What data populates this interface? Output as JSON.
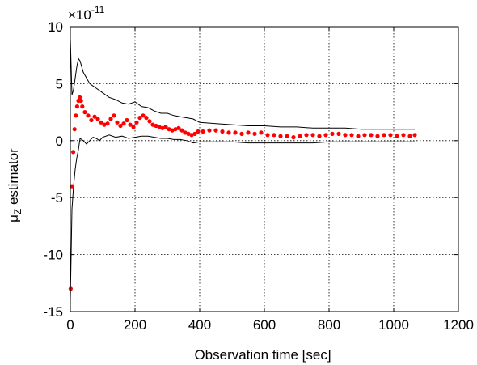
{
  "chart_data": {
    "type": "scatter",
    "xlabel": "Observation time [sec]",
    "ylabel": "μZ estimator",
    "ylabel_main": "μ",
    "ylabel_sub": "Z",
    "ylabel_rest": " estimator",
    "y_multiplier": "×10",
    "y_multiplier_exp": "-11",
    "xlim": [
      0,
      1200
    ],
    "ylim": [
      -15,
      10
    ],
    "x_ticks": [
      "0",
      "200",
      "400",
      "600",
      "800",
      "1000",
      "1200"
    ],
    "y_ticks": [
      "-15",
      "-10",
      "-5",
      "0",
      "5",
      "10"
    ],
    "grid": true,
    "series": [
      {
        "role": "estimate",
        "color": "#ff0000",
        "style": "markers",
        "x": [
          1,
          5,
          9,
          13,
          17,
          21,
          25,
          29,
          33,
          37,
          45,
          55,
          65,
          75,
          85,
          95,
          105,
          115,
          125,
          135,
          145,
          155,
          165,
          175,
          185,
          195,
          205,
          215,
          225,
          235,
          245,
          255,
          265,
          275,
          285,
          295,
          305,
          315,
          325,
          335,
          345,
          355,
          365,
          375,
          385,
          395,
          410,
          430,
          450,
          470,
          490,
          510,
          530,
          550,
          570,
          590,
          610,
          630,
          650,
          670,
          690,
          710,
          730,
          750,
          770,
          790,
          810,
          830,
          850,
          870,
          890,
          910,
          930,
          950,
          970,
          990,
          1010,
          1030,
          1050,
          1065
        ],
        "y": [
          -13,
          -4,
          -1,
          1,
          2.2,
          3,
          3.5,
          3.8,
          3.5,
          3.0,
          2.5,
          2.2,
          1.8,
          2.1,
          1.9,
          1.6,
          1.4,
          1.5,
          1.9,
          2.2,
          1.6,
          1.3,
          1.5,
          1.8,
          1.4,
          1.2,
          1.6,
          2.0,
          2.2,
          2.0,
          1.7,
          1.4,
          1.3,
          1.2,
          1.1,
          1.2,
          1.0,
          0.9,
          1.0,
          1.1,
          0.9,
          0.7,
          0.6,
          0.5,
          0.6,
          0.8,
          0.8,
          0.9,
          0.9,
          0.8,
          0.7,
          0.7,
          0.6,
          0.7,
          0.6,
          0.7,
          0.5,
          0.5,
          0.4,
          0.4,
          0.3,
          0.4,
          0.5,
          0.5,
          0.4,
          0.5,
          0.6,
          0.6,
          0.5,
          0.5,
          0.4,
          0.5,
          0.5,
          0.4,
          0.5,
          0.5,
          0.4,
          0.5,
          0.4,
          0.5
        ]
      },
      {
        "role": "upper-bound",
        "color": "#000000",
        "style": "line",
        "x": [
          0,
          5,
          10,
          15,
          20,
          25,
          30,
          40,
          50,
          60,
          70,
          80,
          90,
          100,
          120,
          140,
          160,
          180,
          200,
          220,
          240,
          260,
          280,
          300,
          320,
          340,
          360,
          380,
          400,
          450,
          500,
          550,
          600,
          650,
          700,
          750,
          800,
          850,
          900,
          950,
          1000,
          1050,
          1065
        ],
        "y": [
          9,
          4,
          4.5,
          5.5,
          6.5,
          7.2,
          7.0,
          6.0,
          5.5,
          5.0,
          4.8,
          4.6,
          4.4,
          4.2,
          3.8,
          3.6,
          3.3,
          3.2,
          3.4,
          3.0,
          2.9,
          2.6,
          2.4,
          2.4,
          2.2,
          2.1,
          2.0,
          1.9,
          1.6,
          1.5,
          1.4,
          1.3,
          1.3,
          1.2,
          1.2,
          1.1,
          1.1,
          1.1,
          1.0,
          1.0,
          1.0,
          1.0,
          1.0
        ]
      },
      {
        "role": "lower-bound",
        "color": "#000000",
        "style": "line",
        "x": [
          0,
          5,
          10,
          15,
          20,
          25,
          30,
          40,
          50,
          60,
          70,
          80,
          90,
          100,
          120,
          140,
          160,
          180,
          200,
          220,
          240,
          260,
          280,
          300,
          320,
          340,
          360,
          380,
          400,
          450,
          500,
          550,
          600,
          650,
          700,
          750,
          800,
          850,
          900,
          950,
          1000,
          1050,
          1065
        ],
        "y": [
          -14,
          -6,
          -4,
          -2.5,
          -1.5,
          -0.8,
          0.2,
          0.0,
          -0.3,
          0.0,
          0.3,
          0.2,
          0.0,
          0.3,
          0.5,
          0.3,
          0.4,
          0.2,
          0.3,
          0.4,
          0.4,
          0.3,
          0.2,
          0.2,
          0.1,
          0.1,
          0.0,
          -0.2,
          -0.1,
          -0.1,
          -0.1,
          -0.2,
          -0.2,
          -0.2,
          -0.2,
          -0.2,
          -0.1,
          -0.1,
          -0.1,
          -0.1,
          -0.1,
          -0.1,
          -0.1
        ]
      }
    ]
  }
}
